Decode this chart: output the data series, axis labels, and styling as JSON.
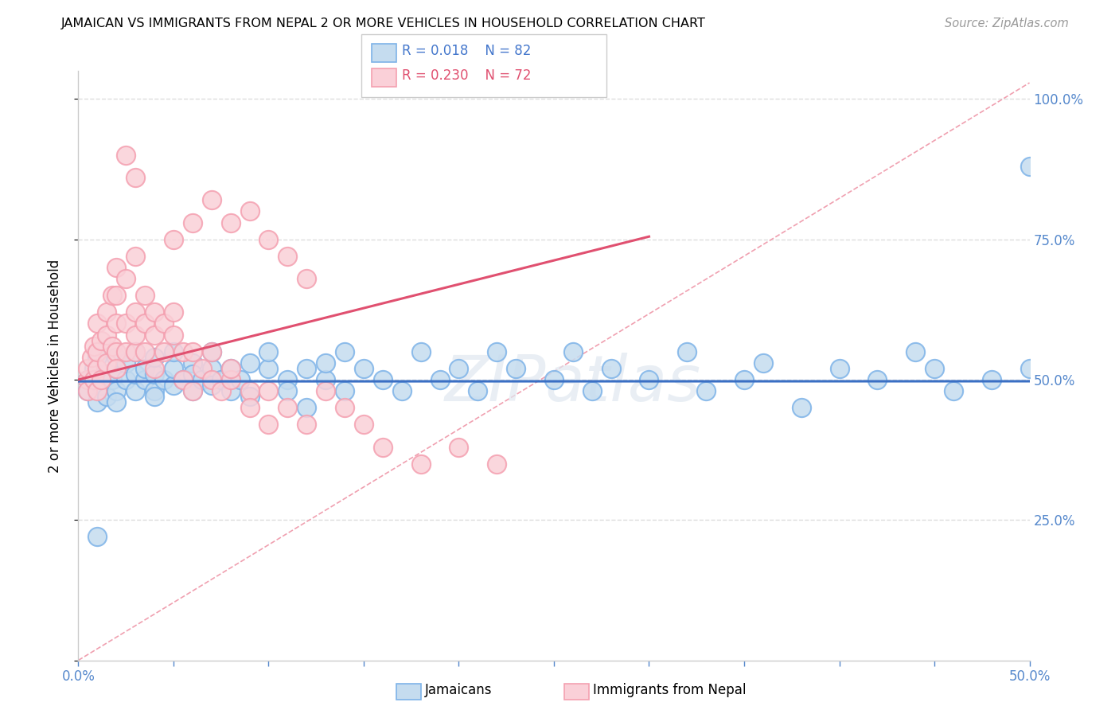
{
  "title": "JAMAICAN VS IMMIGRANTS FROM NEPAL 2 OR MORE VEHICLES IN HOUSEHOLD CORRELATION CHART",
  "source": "Source: ZipAtlas.com",
  "ylabel_label": "2 or more Vehicles in Household",
  "legend1_label": "Jamaicans",
  "legend2_label": "Immigrants from Nepal",
  "R_blue": "0.018",
  "N_blue": "82",
  "R_pink": "0.230",
  "N_pink": "72",
  "blue_color": "#7EB3E8",
  "pink_color": "#F4A0B0",
  "blue_fill": "#C5DCEF",
  "pink_fill": "#FAD0D8",
  "blue_line_color": "#3A6FC4",
  "pink_line_color": "#E05070",
  "ref_line_color": "#F0A0B0",
  "grid_color": "#DDDDDD",
  "xmin": 0.0,
  "xmax": 0.5,
  "ymin": 0.0,
  "ymax": 1.05,
  "blue_x": [
    0.005,
    0.005,
    0.008,
    0.01,
    0.01,
    0.01,
    0.01,
    0.012,
    0.015,
    0.015,
    0.018,
    0.02,
    0.02,
    0.02,
    0.02,
    0.025,
    0.025,
    0.03,
    0.03,
    0.03,
    0.035,
    0.035,
    0.04,
    0.04,
    0.04,
    0.04,
    0.045,
    0.05,
    0.05,
    0.05,
    0.055,
    0.06,
    0.06,
    0.06,
    0.065,
    0.07,
    0.07,
    0.07,
    0.075,
    0.08,
    0.08,
    0.085,
    0.09,
    0.09,
    0.1,
    0.1,
    0.11,
    0.11,
    0.12,
    0.12,
    0.13,
    0.13,
    0.14,
    0.14,
    0.15,
    0.16,
    0.17,
    0.18,
    0.19,
    0.2,
    0.21,
    0.22,
    0.23,
    0.25,
    0.26,
    0.27,
    0.28,
    0.3,
    0.32,
    0.33,
    0.35,
    0.36,
    0.38,
    0.4,
    0.42,
    0.44,
    0.45,
    0.46,
    0.48,
    0.5,
    0.01,
    0.5
  ],
  "blue_y": [
    0.5,
    0.48,
    0.52,
    0.46,
    0.5,
    0.52,
    0.54,
    0.49,
    0.47,
    0.51,
    0.5,
    0.48,
    0.52,
    0.46,
    0.54,
    0.5,
    0.53,
    0.48,
    0.51,
    0.55,
    0.5,
    0.52,
    0.48,
    0.51,
    0.54,
    0.47,
    0.5,
    0.49,
    0.52,
    0.55,
    0.5,
    0.48,
    0.53,
    0.51,
    0.5,
    0.52,
    0.49,
    0.55,
    0.5,
    0.52,
    0.48,
    0.5,
    0.53,
    0.47,
    0.52,
    0.55,
    0.5,
    0.48,
    0.52,
    0.45,
    0.5,
    0.53,
    0.55,
    0.48,
    0.52,
    0.5,
    0.48,
    0.55,
    0.5,
    0.52,
    0.48,
    0.55,
    0.52,
    0.5,
    0.55,
    0.48,
    0.52,
    0.5,
    0.55,
    0.48,
    0.5,
    0.53,
    0.45,
    0.52,
    0.5,
    0.55,
    0.52,
    0.48,
    0.5,
    0.52,
    0.22,
    0.88
  ],
  "pink_x": [
    0.005,
    0.005,
    0.005,
    0.007,
    0.008,
    0.008,
    0.01,
    0.01,
    0.01,
    0.01,
    0.012,
    0.012,
    0.015,
    0.015,
    0.015,
    0.018,
    0.018,
    0.02,
    0.02,
    0.02,
    0.02,
    0.02,
    0.025,
    0.025,
    0.025,
    0.03,
    0.03,
    0.03,
    0.03,
    0.035,
    0.035,
    0.035,
    0.04,
    0.04,
    0.04,
    0.045,
    0.045,
    0.05,
    0.05,
    0.055,
    0.055,
    0.06,
    0.06,
    0.065,
    0.07,
    0.07,
    0.075,
    0.08,
    0.08,
    0.09,
    0.09,
    0.1,
    0.1,
    0.11,
    0.12,
    0.13,
    0.14,
    0.15,
    0.16,
    0.18,
    0.2,
    0.22,
    0.05,
    0.06,
    0.07,
    0.08,
    0.09,
    0.1,
    0.11,
    0.12,
    0.025,
    0.03
  ],
  "pink_y": [
    0.5,
    0.52,
    0.48,
    0.54,
    0.5,
    0.56,
    0.52,
    0.55,
    0.48,
    0.6,
    0.5,
    0.57,
    0.53,
    0.58,
    0.62,
    0.56,
    0.65,
    0.55,
    0.6,
    0.52,
    0.7,
    0.65,
    0.55,
    0.6,
    0.68,
    0.55,
    0.62,
    0.58,
    0.72,
    0.55,
    0.6,
    0.65,
    0.58,
    0.52,
    0.62,
    0.6,
    0.55,
    0.58,
    0.62,
    0.55,
    0.5,
    0.55,
    0.48,
    0.52,
    0.5,
    0.55,
    0.48,
    0.5,
    0.52,
    0.48,
    0.45,
    0.42,
    0.48,
    0.45,
    0.42,
    0.48,
    0.45,
    0.42,
    0.38,
    0.35,
    0.38,
    0.35,
    0.75,
    0.78,
    0.82,
    0.78,
    0.8,
    0.75,
    0.72,
    0.68,
    0.9,
    0.86
  ]
}
